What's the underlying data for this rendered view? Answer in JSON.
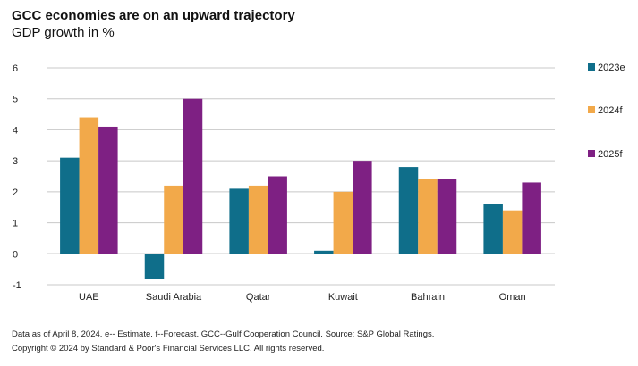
{
  "header": {
    "title": "GCC economies are on an upward trajectory",
    "subtitle": "GDP growth in %"
  },
  "footer": {
    "note": "Data as of April 8, 2024. e-- Estimate. f--Forecast. GCC--Gulf Cooperation Council. Source: S&P Global Ratings.",
    "copyright": "Copyright © 2024 by Standard & Poor's Financial Services LLC. All rights reserved."
  },
  "chart_data": {
    "type": "bar",
    "categories": [
      "UAE",
      "Saudi Arabia",
      "Qatar",
      "Kuwait",
      "Bahrain",
      "Oman"
    ],
    "series": [
      {
        "name": "2023e",
        "color": "#0f6e8a",
        "values": [
          3.1,
          -0.8,
          2.1,
          0.1,
          2.8,
          1.6
        ]
      },
      {
        "name": "2024f",
        "color": "#f2a94a",
        "values": [
          4.4,
          2.2,
          2.2,
          2.0,
          2.4,
          1.4
        ]
      },
      {
        "name": "2025f",
        "color": "#7e2083",
        "values": [
          4.1,
          5.0,
          2.5,
          3.0,
          2.4,
          2.3
        ]
      }
    ],
    "ylim": [
      -1,
      6
    ],
    "yticks": [
      "-1",
      "0",
      "1",
      "2",
      "3",
      "4",
      "5",
      "6"
    ],
    "grid": true,
    "legend_position": "right",
    "title": "GCC economies are on an upward trajectory",
    "ylabel": "GDP growth in %"
  }
}
